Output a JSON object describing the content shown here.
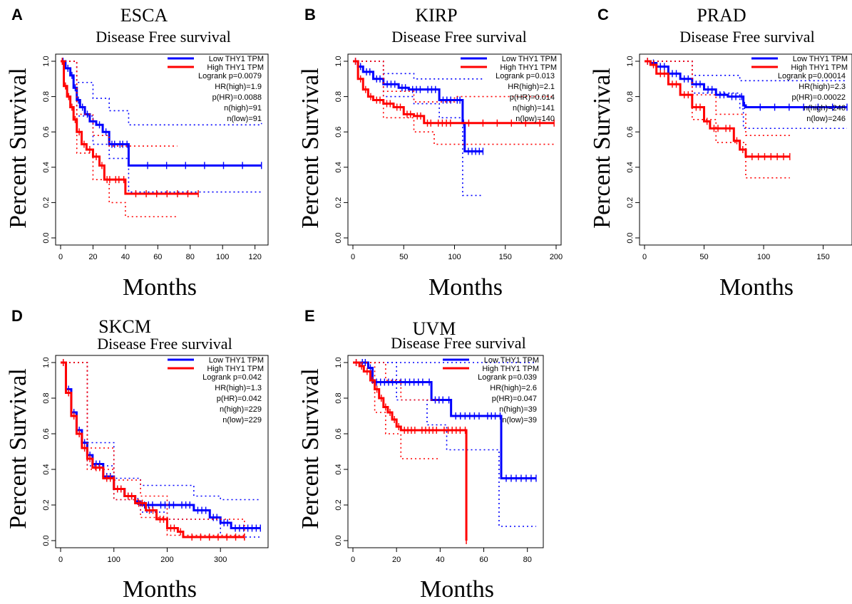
{
  "chart_data": [
    {
      "panel_label": "A",
      "title": "ESCA",
      "subtitle": "Disease Free survival",
      "type": "line",
      "xlabel": "Months",
      "ylabel": "Percent Survival",
      "xlim": [
        0,
        125
      ],
      "xticks": [
        0,
        20,
        40,
        60,
        80,
        100,
        120
      ],
      "ylim": [
        0,
        1
      ],
      "yticks": [
        0.0,
        0.2,
        0.4,
        0.6,
        0.8,
        1.0
      ],
      "legend_position": "top-right",
      "legend": [
        "Low THY1 TPM",
        "High THY1 TPM"
      ],
      "stats": [
        "Logrank p=0.0079",
        "HR(high)=1.9",
        "p(HR)=0.0088",
        "n(high)=91",
        "n(low)=91"
      ],
      "series": [
        {
          "name": "Low THY1 TPM",
          "color": "#0000ff",
          "x": [
            0,
            3,
            6,
            8,
            10,
            12,
            15,
            18,
            22,
            26,
            30,
            35,
            40,
            42,
            124
          ],
          "y": [
            1.0,
            0.96,
            0.92,
            0.85,
            0.78,
            0.74,
            0.7,
            0.66,
            0.64,
            0.6,
            0.53,
            0.53,
            0.53,
            0.41,
            0.41
          ],
          "ci_upper": [
            [
              0,
              1.0
            ],
            [
              10,
              0.88
            ],
            [
              20,
              0.79
            ],
            [
              30,
              0.72
            ],
            [
              42,
              0.64
            ],
            [
              124,
              0.65
            ]
          ],
          "ci_lower": [
            [
              0,
              1.0
            ],
            [
              10,
              0.69
            ],
            [
              20,
              0.53
            ],
            [
              30,
              0.45
            ],
            [
              42,
              0.26
            ],
            [
              124,
              0.26
            ]
          ]
        },
        {
          "name": "High THY1 TPM",
          "color": "#ff0000",
          "x": [
            0,
            2,
            4,
            6,
            8,
            10,
            13,
            16,
            20,
            24,
            27,
            32,
            38,
            40,
            85
          ],
          "y": [
            1.0,
            0.86,
            0.8,
            0.74,
            0.67,
            0.6,
            0.53,
            0.5,
            0.46,
            0.41,
            0.33,
            0.33,
            0.33,
            0.25,
            0.25
          ],
          "ci_upper": [
            [
              0,
              1.0
            ],
            [
              10,
              0.7
            ],
            [
              20,
              0.58
            ],
            [
              30,
              0.52
            ],
            [
              40,
              0.52
            ],
            [
              72,
              0.52
            ]
          ],
          "ci_lower": [
            [
              0,
              1.0
            ],
            [
              10,
              0.48
            ],
            [
              20,
              0.33
            ],
            [
              30,
              0.2
            ],
            [
              40,
              0.12
            ],
            [
              72,
              0.12
            ]
          ]
        }
      ]
    },
    {
      "panel_label": "B",
      "title": "KIRP",
      "subtitle": "Disease Free survival",
      "type": "line",
      "xlabel": "Months",
      "ylabel": "Percent Survival",
      "xlim": [
        0,
        200
      ],
      "xticks": [
        0,
        50,
        100,
        150,
        200
      ],
      "ylim": [
        0,
        1
      ],
      "yticks": [
        0.0,
        0.2,
        0.4,
        0.6,
        0.8,
        1.0
      ],
      "legend_position": "top-right",
      "legend": [
        "Low THY1 TPM",
        "High THY1 TPM"
      ],
      "stats": [
        "Logrank p=0.013",
        "HR(high)=2.1",
        "p(HR)=0.014",
        "n(high)=141",
        "n(low)=140"
      ],
      "series": [
        {
          "name": "Low THY1 TPM",
          "color": "#0000ff",
          "x": [
            0,
            5,
            10,
            20,
            30,
            45,
            55,
            70,
            85,
            100,
            108,
            110,
            128
          ],
          "y": [
            1.0,
            0.97,
            0.94,
            0.9,
            0.87,
            0.85,
            0.84,
            0.84,
            0.78,
            0.78,
            0.65,
            0.49,
            0.49
          ],
          "ci_upper": [
            [
              0,
              1.0
            ],
            [
              30,
              0.93
            ],
            [
              60,
              0.9
            ],
            [
              85,
              0.9
            ],
            [
              110,
              0.9
            ],
            [
              128,
              0.9
            ]
          ],
          "ci_lower": [
            [
              0,
              1.0
            ],
            [
              30,
              0.8
            ],
            [
              60,
              0.76
            ],
            [
              85,
              0.68
            ],
            [
              108,
              0.24
            ],
            [
              128,
              0.24
            ]
          ]
        },
        {
          "name": "High THY1 TPM",
          "color": "#ff0000",
          "x": [
            0,
            5,
            10,
            15,
            20,
            30,
            40,
            50,
            60,
            70,
            80,
            100,
            198
          ],
          "y": [
            1.0,
            0.9,
            0.84,
            0.8,
            0.78,
            0.76,
            0.74,
            0.7,
            0.69,
            0.65,
            0.65,
            0.65,
            0.65
          ],
          "ci_upper": [
            [
              0,
              1.0
            ],
            [
              30,
              0.83
            ],
            [
              60,
              0.77
            ],
            [
              100,
              0.8
            ],
            [
              198,
              0.8
            ]
          ],
          "ci_lower": [
            [
              0,
              1.0
            ],
            [
              30,
              0.68
            ],
            [
              60,
              0.6
            ],
            [
              80,
              0.53
            ],
            [
              198,
              0.53
            ]
          ]
        }
      ]
    },
    {
      "panel_label": "C",
      "title": "PRAD",
      "subtitle": "Disease Free survival",
      "type": "line",
      "xlabel": "Months",
      "ylabel": "Percent Survival",
      "xlim": [
        0,
        170
      ],
      "xticks": [
        0,
        50,
        100,
        150
      ],
      "ylim": [
        0,
        1
      ],
      "yticks": [
        0.0,
        0.2,
        0.4,
        0.6,
        0.8,
        1.0
      ],
      "legend_position": "top-right",
      "legend": [
        "Low THY1 TPM",
        "High THY1 TPM"
      ],
      "stats": [
        "Logrank p=0.00014",
        "HR(high)=2.3",
        "p(HR)=0.00022",
        "n(high)=246",
        "n(low)=246"
      ],
      "series": [
        {
          "name": "Low THY1 TPM",
          "color": "#0000ff",
          "x": [
            0,
            5,
            10,
            20,
            30,
            40,
            50,
            60,
            70,
            80,
            83,
            85,
            170
          ],
          "y": [
            1.0,
            0.99,
            0.97,
            0.93,
            0.9,
            0.87,
            0.84,
            0.81,
            0.8,
            0.8,
            0.75,
            0.74,
            0.74
          ],
          "ci_upper": [
            [
              0,
              1.0
            ],
            [
              40,
              0.92
            ],
            [
              80,
              0.89
            ],
            [
              170,
              0.89
            ]
          ],
          "ci_lower": [
            [
              0,
              1.0
            ],
            [
              40,
              0.82
            ],
            [
              80,
              0.73
            ],
            [
              83,
              0.62
            ],
            [
              170,
              0.62
            ]
          ]
        },
        {
          "name": "High THY1 TPM",
          "color": "#ff0000",
          "x": [
            0,
            5,
            10,
            20,
            30,
            40,
            50,
            55,
            65,
            75,
            80,
            85,
            122
          ],
          "y": [
            1.0,
            0.98,
            0.93,
            0.87,
            0.81,
            0.74,
            0.66,
            0.62,
            0.62,
            0.55,
            0.5,
            0.46,
            0.46
          ],
          "ci_upper": [
            [
              0,
              1.0
            ],
            [
              40,
              0.81
            ],
            [
              60,
              0.7
            ],
            [
              85,
              0.58
            ],
            [
              122,
              0.58
            ]
          ],
          "ci_lower": [
            [
              0,
              1.0
            ],
            [
              40,
              0.67
            ],
            [
              60,
              0.54
            ],
            [
              85,
              0.34
            ],
            [
              122,
              0.34
            ]
          ]
        }
      ]
    },
    {
      "panel_label": "D",
      "title": "SKCM",
      "subtitle": "Disease Free survival",
      "type": "line",
      "xlabel": "Months",
      "ylabel": "Percent Survival",
      "xlim": [
        0,
        380
      ],
      "xticks": [
        0,
        100,
        200,
        300
      ],
      "ylim": [
        0,
        1
      ],
      "yticks": [
        0.0,
        0.2,
        0.4,
        0.6,
        0.8,
        1.0
      ],
      "legend_position": "top-right",
      "legend": [
        "Low THY1 TPM",
        "High THY1 TPM"
      ],
      "stats": [
        "Logrank p=0.042",
        "HR(high)=1.3",
        "p(HR)=0.042",
        "n(high)=229",
        "n(low)=229"
      ],
      "series": [
        {
          "name": "Low THY1 TPM",
          "color": "#0000ff",
          "x": [
            0,
            10,
            20,
            30,
            40,
            50,
            60,
            80,
            100,
            120,
            140,
            150,
            180,
            220,
            250,
            280,
            300,
            320,
            375
          ],
          "y": [
            1.0,
            0.85,
            0.72,
            0.62,
            0.55,
            0.48,
            0.43,
            0.36,
            0.29,
            0.25,
            0.22,
            0.2,
            0.2,
            0.2,
            0.17,
            0.13,
            0.1,
            0.07,
            0.07
          ],
          "ci_upper": [
            [
              0,
              1.0
            ],
            [
              50,
              0.55
            ],
            [
              100,
              0.35
            ],
            [
              150,
              0.31
            ],
            [
              250,
              0.25
            ],
            [
              300,
              0.23
            ],
            [
              375,
              0.23
            ]
          ],
          "ci_lower": [
            [
              0,
              1.0
            ],
            [
              50,
              0.42
            ],
            [
              100,
              0.23
            ],
            [
              150,
              0.16
            ],
            [
              200,
              0.12
            ],
            [
              300,
              0.02
            ],
            [
              375,
              0.02
            ]
          ]
        },
        {
          "name": "High THY1 TPM",
          "color": "#ff0000",
          "x": [
            0,
            10,
            20,
            30,
            40,
            50,
            60,
            80,
            100,
            120,
            140,
            160,
            180,
            200,
            220,
            230,
            345
          ],
          "y": [
            1.0,
            0.83,
            0.7,
            0.6,
            0.52,
            0.46,
            0.41,
            0.35,
            0.29,
            0.25,
            0.21,
            0.17,
            0.12,
            0.07,
            0.05,
            0.02,
            0.02
          ],
          "ci_upper": [
            [
              0,
              1.0
            ],
            [
              50,
              0.52
            ],
            [
              100,
              0.34
            ],
            [
              150,
              0.25
            ],
            [
              200,
              0.12
            ],
            [
              345,
              0.03
            ]
          ],
          "ci_lower": [
            [
              0,
              1.0
            ],
            [
              50,
              0.4
            ],
            [
              100,
              0.23
            ],
            [
              150,
              0.13
            ],
            [
              200,
              0.03
            ],
            [
              345,
              0.0
            ]
          ]
        }
      ]
    },
    {
      "panel_label": "E",
      "title": "UVM",
      "subtitle": "Disease Free survival",
      "type": "line",
      "xlabel": "Months",
      "ylabel": "Percent Survival",
      "xlim": [
        0,
        85
      ],
      "xticks": [
        0,
        20,
        40,
        60,
        80
      ],
      "ylim": [
        0,
        1
      ],
      "yticks": [
        0.0,
        0.2,
        0.4,
        0.6,
        0.8,
        1.0
      ],
      "legend_position": "top-right",
      "legend": [
        "Low THY1 TPM",
        "High THY1 TPM"
      ],
      "stats": [
        "Logrank p=0.039",
        "HR(high)=2.6",
        "p(HR)=0.047",
        "n(high)=39",
        "n(low)=39"
      ],
      "series": [
        {
          "name": "Low THY1 TPM",
          "color": "#0000ff",
          "x": [
            0,
            3,
            7,
            9,
            20,
            34,
            36,
            43,
            45,
            60,
            67,
            68,
            84
          ],
          "y": [
            1.0,
            1.0,
            0.97,
            0.89,
            0.89,
            0.89,
            0.79,
            0.79,
            0.7,
            0.7,
            0.7,
            0.35,
            0.35
          ],
          "ci_upper": [
            [
              0,
              1.0
            ],
            [
              36,
              1.0
            ],
            [
              68,
              1.0
            ],
            [
              84,
              1.0
            ]
          ],
          "ci_lower": [
            [
              0,
              1.0
            ],
            [
              20,
              0.79
            ],
            [
              34,
              0.65
            ],
            [
              43,
              0.51
            ],
            [
              57,
              0.51
            ],
            [
              67,
              0.08
            ],
            [
              84,
              0.08
            ]
          ]
        },
        {
          "name": "High THY1 TPM",
          "color": "#ff0000",
          "x": [
            0,
            3,
            5,
            8,
            10,
            12,
            14,
            16,
            18,
            20,
            22,
            30,
            40,
            51,
            52
          ],
          "y": [
            1.0,
            0.98,
            0.95,
            0.9,
            0.85,
            0.8,
            0.75,
            0.72,
            0.68,
            0.64,
            0.62,
            0.62,
            0.62,
            0.62,
            0.0
          ],
          "ci_upper": [
            [
              0,
              1.0
            ],
            [
              15,
              0.9
            ],
            [
              22,
              0.79
            ],
            [
              40,
              0.79
            ]
          ],
          "ci_lower": [
            [
              0,
              1.0
            ],
            [
              10,
              0.72
            ],
            [
              15,
              0.6
            ],
            [
              22,
              0.46
            ],
            [
              40,
              0.46
            ]
          ]
        }
      ]
    }
  ]
}
